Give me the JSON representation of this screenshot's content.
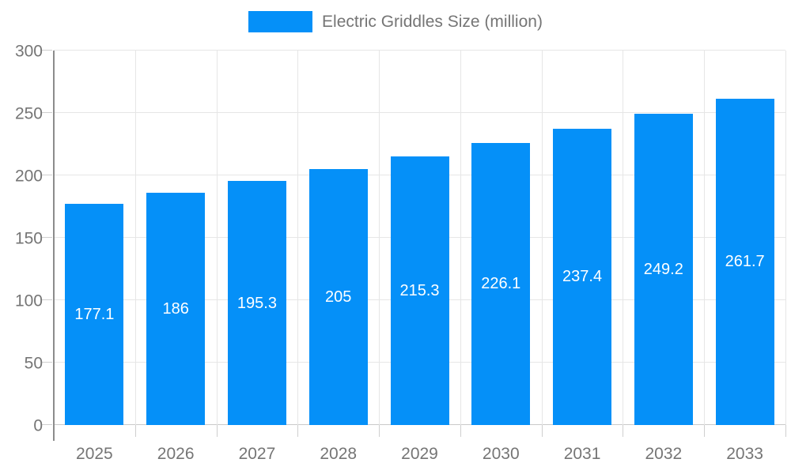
{
  "legend": {
    "label": "Electric Griddles Size (million)"
  },
  "colors": {
    "bar": "#0590F8",
    "axis_line": "#8C8C8C",
    "baseline": "#C9C9C9",
    "gridline": "#E6E6E6",
    "tick": "#CFCFCF",
    "text": "#757575",
    "value_text": "#FFFFFF"
  },
  "chart_data": {
    "type": "bar",
    "title": "Electric Griddles Size (million)",
    "categories": [
      "2025",
      "2026",
      "2027",
      "2028",
      "2029",
      "2030",
      "2031",
      "2032",
      "2033"
    ],
    "values": [
      177.1,
      186,
      195.3,
      205,
      215.3,
      226.1,
      237.4,
      249.2,
      261.7
    ],
    "series_name": "Electric Griddles Size (million)",
    "xlabel": "",
    "ylabel": "",
    "ylim": [
      0,
      300
    ],
    "yticks": [
      0,
      50,
      100,
      150,
      200,
      250,
      300
    ],
    "grid": true,
    "legend_position": "top",
    "value_label_position": "inside-center",
    "bar_width_fraction": 0.72
  }
}
